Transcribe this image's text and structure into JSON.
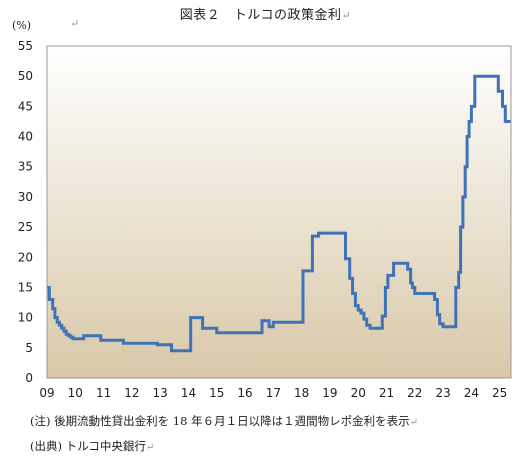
{
  "title": "図表２　トルコの政策金利",
  "unit_label": "(%)",
  "notes": {
    "note1": "(注) 後期流動性貸出金利を 18 年６月１日以降は１週間物レポ金利を表示",
    "note2": "(出典) トルコ中央銀行"
  },
  "colors": {
    "line": "#3f72b6",
    "plot_top": "#ffffff",
    "plot_bottom": "#d8c8a8",
    "frame": "#999999"
  },
  "chart_data": {
    "type": "line",
    "title": "図表２　トルコの政策金利",
    "ylabel": "(%)",
    "xlabel": "",
    "ylim": [
      0,
      55
    ],
    "xlim": [
      2009.0,
      2025.4
    ],
    "y_ticks": [
      0,
      5,
      10,
      15,
      20,
      25,
      30,
      35,
      40,
      45,
      50,
      55
    ],
    "x_ticks": [
      "09",
      "10",
      "11",
      "12",
      "13",
      "14",
      "15",
      "16",
      "17",
      "18",
      "19",
      "20",
      "21",
      "22",
      "23",
      "24",
      "25"
    ],
    "grid": false,
    "legend": "none",
    "series": [
      {
        "name": "",
        "step": true,
        "x": [
          2009.0,
          2009.08,
          2009.2,
          2009.28,
          2009.36,
          2009.44,
          2009.52,
          2009.6,
          2009.68,
          2009.76,
          2009.84,
          2009.92,
          2010.3,
          2010.9,
          2011.7,
          2012.3,
          2012.9,
          2013.4,
          2014.08,
          2014.5,
          2015.0,
          2016.45,
          2016.6,
          2016.85,
          2017.0,
          2018.05,
          2018.38,
          2018.6,
          2019.55,
          2019.7,
          2019.8,
          2019.9,
          2020.0,
          2020.1,
          2020.2,
          2020.3,
          2020.42,
          2020.85,
          2020.96,
          2021.05,
          2021.25,
          2021.75,
          2021.85,
          2021.92,
          2022.0,
          2022.7,
          2022.8,
          2022.88,
          2023.0,
          2023.45,
          2023.55,
          2023.62,
          2023.7,
          2023.78,
          2023.85,
          2023.92,
          2024.0,
          2024.12,
          2024.25,
          2024.95,
          2025.1,
          2025.2,
          2025.3,
          2025.4
        ],
        "values": [
          15,
          13,
          11.5,
          10,
          9.25,
          8.75,
          8.25,
          7.75,
          7.25,
          7,
          6.75,
          6.5,
          7,
          6.25,
          5.75,
          5.75,
          5.5,
          4.5,
          10,
          8.25,
          7.5,
          7.5,
          9.5,
          8.5,
          9.25,
          17.75,
          23.5,
          24,
          19.75,
          16.5,
          14,
          12,
          11.25,
          10.75,
          9.75,
          8.75,
          8.25,
          10.25,
          15,
          17,
          19,
          18,
          15.75,
          15,
          14,
          13,
          10.5,
          9,
          8.5,
          15,
          17.5,
          25,
          30,
          35,
          40,
          42.5,
          45,
          50,
          50,
          47.5,
          45,
          42.5,
          42.5,
          42.5
        ]
      }
    ]
  }
}
